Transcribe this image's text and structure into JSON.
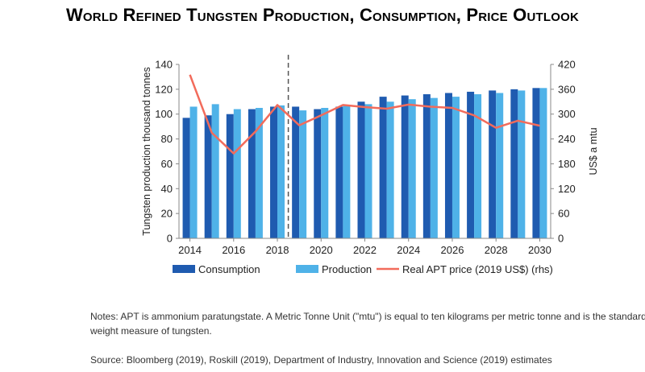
{
  "page": {
    "title": "World Refined Tungsten Production, Consumption, Price Outlook",
    "notes": "Notes: APT is ammonium paratungstate. A Metric Tonne Unit (\"mtu\") is equal to ten kilograms per metric tonne and is the standard weight measure of tungsten.",
    "source": "Source: Bloomberg (2019), Roskill (2019), Department of Industry, Innovation and Science (2019) estimates"
  },
  "colors": {
    "consumption": "#1F5BB0",
    "production": "#4FB2E8",
    "price": "#F26B5B",
    "divider": "#555555",
    "axis": "#888888"
  },
  "chart_data": {
    "type": "bar",
    "title": "",
    "categories": [
      2014,
      2015,
      2016,
      2017,
      2018,
      2019,
      2020,
      2021,
      2022,
      2023,
      2024,
      2025,
      2026,
      2027,
      2028,
      2029,
      2030
    ],
    "x_tick_labels": [
      "2014",
      "2016",
      "2018",
      "2020",
      "2022",
      "2024",
      "2026",
      "2028",
      "2030"
    ],
    "series": [
      {
        "name": "Consumption",
        "kind": "bar",
        "axis": "left",
        "values": [
          97,
          99,
          100,
          104,
          106,
          106,
          104,
          106,
          110,
          114,
          115,
          116,
          117,
          118,
          119,
          120,
          121
        ]
      },
      {
        "name": "Production",
        "kind": "bar",
        "axis": "left",
        "values": [
          106,
          108,
          104,
          105,
          107,
          103,
          105,
          107,
          108,
          110,
          112,
          113,
          114,
          116,
          117,
          119,
          121
        ]
      },
      {
        "name": "Real APT price (2019 US$) (rhs)",
        "kind": "line",
        "axis": "right",
        "values": [
          395,
          255,
          205,
          258,
          322,
          273,
          297,
          322,
          317,
          313,
          323,
          318,
          315,
          297,
          267,
          284,
          272
        ]
      }
    ],
    "ylabel": "Tungsten production thousand tonnes",
    "ylim": [
      0,
      140
    ],
    "yticks": [
      0,
      20,
      40,
      60,
      80,
      100,
      120,
      140
    ],
    "y2label": "US$ a mtu",
    "y2lim": [
      0,
      420
    ],
    "y2ticks": [
      0,
      60,
      120,
      180,
      240,
      300,
      360,
      420
    ],
    "forecast_divider_after": 2018,
    "grid": false,
    "legend_position": "bottom"
  }
}
